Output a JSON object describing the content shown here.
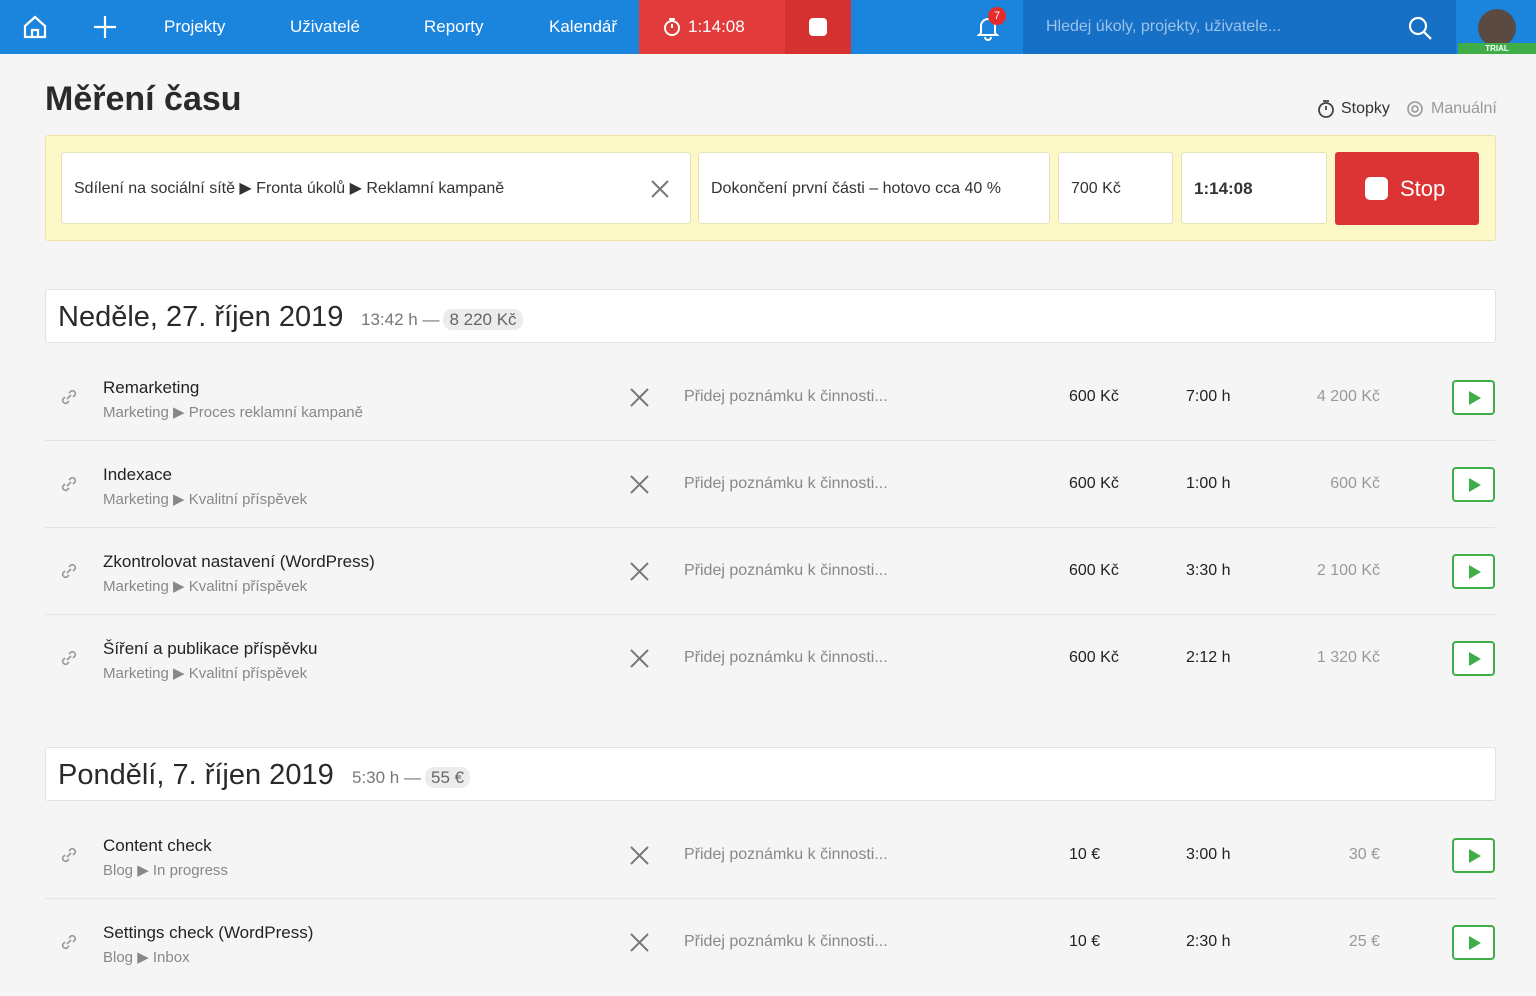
{
  "nav": {
    "items": [
      "Projekty",
      "Uživatelé",
      "Reporty",
      "Kalendář"
    ],
    "timer": "1:14:08",
    "notifications": "7",
    "search_placeholder": "Hledej úkoly, projekty, uživatele...",
    "badge": "TRIAL"
  },
  "header": {
    "title": "Měření času",
    "modes": [
      "Stopky",
      "Manuální"
    ]
  },
  "tracker": {
    "task": "Sdílení na sociální sítě ▶ Fronta úkolů ▶ Reklamní kampaně",
    "note": "Dokončení první části – hotovo cca 40 %",
    "rate": "700 Kč",
    "time": "1:14:08",
    "button": "Stop"
  },
  "days": [
    {
      "date": "Neděle, 27. říjen 2019",
      "hours": "13:42 h —",
      "total": "8 220 Kč",
      "entries": [
        {
          "title": "Remarketing",
          "path": "Marketing ▶ Proces reklamní kampaně",
          "note": "Přidej poznámku k činnosti...",
          "rate": "600 Kč",
          "duration": "7:00 h",
          "amount": "4 200 Kč"
        },
        {
          "title": "Indexace",
          "path": "Marketing ▶ Kvalitní příspěvek",
          "note": "Přidej poznámku k činnosti...",
          "rate": "600 Kč",
          "duration": "1:00 h",
          "amount": "600 Kč"
        },
        {
          "title": "Zkontrolovat nastavení (WordPress)",
          "path": "Marketing ▶ Kvalitní příspěvek",
          "note": "Přidej poznámku k činnosti...",
          "rate": "600 Kč",
          "duration": "3:30 h",
          "amount": "2 100 Kč"
        },
        {
          "title": "Šíření a publikace příspěvku",
          "path": "Marketing ▶ Kvalitní příspěvek",
          "note": "Přidej poznámku k činnosti...",
          "rate": "600 Kč",
          "duration": "2:12 h",
          "amount": "1 320 Kč"
        }
      ]
    },
    {
      "date": "Pondělí, 7. říjen 2019",
      "hours": "5:30 h —",
      "total": "55 €",
      "entries": [
        {
          "title": "Content check",
          "path": "Blog ▶ In progress",
          "note": "Přidej poznámku k činnosti...",
          "rate": "10 €",
          "duration": "3:00 h",
          "amount": "30 €"
        },
        {
          "title": "Settings check (WordPress)",
          "path": "Blog ▶ Inbox",
          "note": "Přidej poznámku k činnosti...",
          "rate": "10 €",
          "duration": "2:30 h",
          "amount": "25 €"
        }
      ]
    }
  ]
}
